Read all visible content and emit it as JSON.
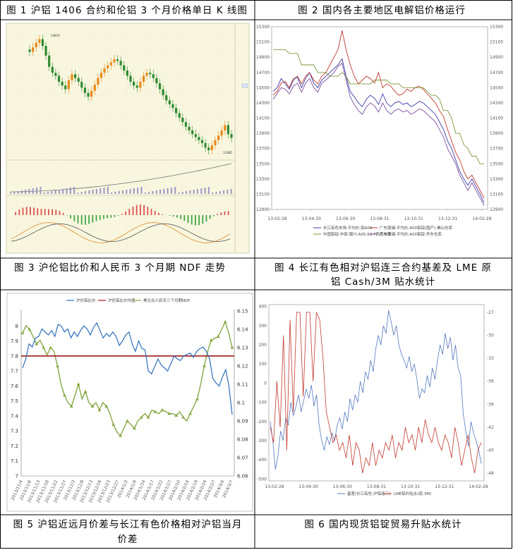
{
  "captions": {
    "fig1": "图 1  沪铝 1406 合约和伦铝 3 个月价格单日 K 线图",
    "fig2": "图  2   国内各主要地区电解铝价格运行",
    "fig3": "图  3    沪伦铝比价和人民币 3 个月期 NDF 走势",
    "fig4_line1": "图 4   长江有色相对沪铝连三合约基差及 LME 原",
    "fig4_line2": "铝 Cash/3M 贴水统计",
    "fig5_line1": "图  5  沪铝近远月价差与长江有色价格相对沪铝当月",
    "fig5_line2": "价差",
    "fig6": "图 6    国内现货铝锭贸易升贴水统计"
  },
  "fig1_labels": {
    "high": "14870",
    "low": "13385"
  },
  "chart_data": [
    {
      "id": "fig1",
      "type": "candlestick",
      "title": "",
      "note": "Daily candlesticks with volume / open-interest and MACD sub-panels; tick text illegible",
      "close_series": [
        14700,
        14760,
        14820,
        14870,
        14780,
        14650,
        14500,
        14420,
        14380,
        14300,
        14250,
        14200,
        14320,
        14400,
        14350,
        14300,
        14220,
        14150,
        14100,
        14180,
        14260,
        14350,
        14420,
        14480,
        14520,
        14560,
        14600,
        14580,
        14520,
        14450,
        14380,
        14300,
        14250,
        14220,
        14300,
        14380,
        14420,
        14400,
        14350,
        14280,
        14200,
        14120,
        14050,
        14000,
        13950,
        13880,
        13820,
        13760,
        13700,
        13650,
        13600,
        13560,
        13520,
        13480,
        13420,
        13385,
        13450,
        13520,
        13580,
        13650,
        13720,
        13600,
        13550
      ]
    },
    {
      "id": "fig2",
      "type": "line",
      "title": "",
      "x_ticks": [
        "13-02-28",
        "13-04-30",
        "13-06-30",
        "13-08-31",
        "13-10-31",
        "13-12-31",
        "14-02-28"
      ],
      "y_left": [
        12900,
        13100,
        13300,
        13500,
        13700,
        13900,
        14100,
        14300,
        14500,
        14700,
        14900,
        15100,
        15300
      ],
      "y_right": [
        12900,
        13100,
        13300,
        13500,
        13700,
        13900,
        14100,
        14300,
        14500,
        14700,
        14900,
        15100,
        15300
      ],
      "ylim": [
        12900,
        15300
      ],
      "legend": [
        "长江有色市场:平均价:铝A00",
        "广东南储:平均价:A00铝锭(国产):佛山仓库",
        "中国铝锭:中部:银川:A00,99.7西南市场",
        "广东南储:平均价:A00铝锭:华东仓库"
      ],
      "series": [
        {
          "name": "长江有色市场:平均价:铝A00",
          "color": "#3a3aa8",
          "values": [
            14450,
            14500,
            14620,
            14550,
            14480,
            14600,
            14640,
            14500,
            14620,
            14700,
            14560,
            14500,
            14600,
            14650,
            14700,
            14750,
            14800,
            14880,
            14650,
            14450,
            14380,
            14300,
            14250,
            14350,
            14400,
            14360,
            14280,
            14420,
            14300,
            14250,
            14300,
            14320,
            14280,
            14300,
            14250,
            14280,
            14320,
            14300,
            14250,
            14200,
            14150,
            14050,
            13950,
            13800,
            13700,
            13550,
            13400,
            13300,
            13220,
            13300,
            13200,
            13100,
            12990
          ]
        },
        {
          "name": "广东南储:平均价:A00铝锭(国产):佛山仓库",
          "color": "#c0392b",
          "values": [
            14400,
            14450,
            14560,
            14580,
            14500,
            14620,
            14650,
            14550,
            14650,
            14700,
            14600,
            14550,
            14650,
            14700,
            14800,
            14900,
            15000,
            15250,
            15000,
            14800,
            14650,
            14550,
            14600,
            14650,
            14620,
            14560,
            14700,
            14500,
            14550,
            14520,
            14450,
            14400,
            14420,
            14480,
            14450,
            14500,
            14520,
            14480,
            14420,
            14360,
            14300,
            14200,
            14120,
            13950,
            13800,
            13650,
            13550,
            13400,
            13300,
            13350,
            13250,
            13150,
            13050
          ]
        },
        {
          "name": "中国铝锭:中部:银川:A00,99.7西南市场",
          "color": "#7a9a3a",
          "values": [
            15000,
            15000,
            15000,
            15000,
            14950,
            14950,
            14950,
            14800,
            14800,
            14800,
            14800,
            14700,
            14700,
            14700,
            14650,
            14650,
            14650,
            14700,
            14650,
            14550,
            14550,
            14550,
            14550,
            14550,
            14550,
            14600,
            14600,
            14600,
            14600,
            14550,
            14550,
            14550,
            14500,
            14500,
            14500,
            14500,
            14500,
            14500,
            14450,
            14400,
            14400,
            14350,
            14200,
            14200,
            14100,
            13900,
            13900,
            13750,
            13700,
            13600,
            13600,
            13500,
            13500
          ]
        },
        {
          "name": "广东南储:平均价:A00铝锭:华东仓库",
          "color": "#7b4fa0",
          "values": [
            14350,
            14420,
            14500,
            14480,
            14420,
            14520,
            14560,
            14440,
            14560,
            14620,
            14500,
            14440,
            14560,
            14600,
            14650,
            14700,
            14780,
            14820,
            14600,
            14380,
            14280,
            14200,
            14150,
            14250,
            14300,
            14260,
            14180,
            14300,
            14200,
            14150,
            14200,
            14220,
            14180,
            14200,
            14150,
            14180,
            14220,
            14200,
            14150,
            14100,
            14050,
            13950,
            13850,
            13700,
            13600,
            13500,
            13350,
            13250,
            13150,
            13250,
            13150,
            13050,
            12950
          ]
        }
      ]
    },
    {
      "id": "fig3",
      "type": "line",
      "title": "",
      "legend": [
        "沪伦铝比价",
        "沪伦铝比价均值",
        "美元兑人民币三个月期NDF"
      ],
      "y_left": [
        "7",
        "7.1",
        "7.2",
        "7.3",
        "7.4",
        "7.5",
        "7.6",
        "7.7",
        "7.8",
        "7.9",
        "8"
      ],
      "y_right": [
        "6.06",
        "6.07",
        "6.08",
        "6.09",
        "6.1",
        "6.11",
        "6.12",
        "6.13",
        "6.14",
        "6.15"
      ],
      "x_ticks": [
        "2013/11/4",
        "2013/11/8",
        "2013/11/13",
        "2013/11/18",
        "2013/11/22",
        "2013/11/27",
        "2013/12/3",
        "2013/12/9",
        "2013/12/13",
        "2013/12/18",
        "2013/12/23",
        "2013/12/27",
        "2014/1/3",
        "2014/1/9",
        "2014/1/14",
        "2014/1/17",
        "2014/1/22",
        "2014/1/27",
        "2014/2/10",
        "2014/2/14",
        "2014/2/19",
        "2014/2/24",
        "2014/2/27",
        "2014/3/4",
        "2014/3/7"
      ],
      "series": [
        {
          "name": "沪伦铝比价",
          "color": "#2e6fba",
          "axis": "left",
          "values": [
            7.72,
            7.78,
            7.88,
            7.86,
            7.92,
            7.93,
            7.98,
            7.96,
            7.94,
            7.97,
            7.93,
            8.01,
            8.0,
            7.96,
            7.98,
            7.92,
            7.96,
            7.93,
            7.97,
            8.0,
            7.98,
            7.94,
            7.99,
            8.02,
            7.97,
            7.92,
            7.95,
            7.93,
            7.96,
            7.93,
            7.87,
            7.9,
            7.94,
            7.96,
            7.88,
            7.83,
            7.9,
            7.85,
            7.84,
            7.7,
            7.68,
            7.73,
            7.78,
            7.74,
            7.72,
            7.7,
            7.75,
            7.8,
            7.78,
            7.77,
            7.8,
            7.81,
            7.82,
            7.79,
            7.83,
            7.85,
            7.86,
            7.83,
            7.78,
            7.65,
            7.62,
            7.6,
            7.66,
            7.71,
            7.6,
            7.41
          ]
        },
        {
          "name": "沪伦铝比价均值",
          "color": "#a01818",
          "axis": "left",
          "values": [
            7.8,
            7.8
          ]
        },
        {
          "name": "美元兑人民币三个月期NDF",
          "color": "#86a844",
          "axis": "right",
          "values": [
            6.138,
            6.142,
            6.14,
            6.136,
            6.132,
            6.134,
            6.13,
            6.126,
            6.13,
            6.128,
            6.12,
            6.11,
            6.104,
            6.1,
            6.098,
            6.104,
            6.11,
            6.102,
            6.106,
            6.1,
            6.098,
            6.1,
            6.096,
            6.1,
            6.098,
            6.094,
            6.088,
            6.084,
            6.082,
            6.086,
            6.09,
            6.088,
            6.086,
            6.09,
            6.092,
            6.094,
            6.092,
            6.096,
            6.095,
            6.094,
            6.096,
            6.095,
            6.094,
            6.094,
            6.093,
            6.095,
            6.092,
            6.09,
            6.094,
            6.098,
            6.102,
            6.11,
            6.12,
            6.128,
            6.134,
            6.135,
            6.136,
            6.14,
            6.144,
            6.138,
            6.13
          ]
        }
      ]
    },
    {
      "id": "fig4",
      "type": "line",
      "title": "",
      "y_left": [
        -500,
        -400,
        -300,
        -200,
        -100,
        0,
        100,
        200,
        300,
        400
      ],
      "y_right": [
        -48,
        -45,
        -42,
        -39,
        -36,
        -33,
        -30,
        -27
      ],
      "x_ticks": [
        "13-02-28",
        "13-04-30",
        "13-06-30",
        "13-08-31",
        "13-10-31",
        "13-12-31",
        "14-02-28"
      ],
      "legend": [
        "基差(长江有色-沪铝连三)",
        "LME铝升贴水(现-3M)"
      ],
      "series": [
        {
          "name": "基差(长江有色-沪铝连三)",
          "color": "#5577c0",
          "axis": "left",
          "values": [
            -200,
            -300,
            -450,
            -380,
            -250,
            -300,
            -180,
            -220,
            -100,
            -170,
            -120,
            -60,
            -150,
            -90,
            -30,
            -80,
            -10,
            -120,
            -60,
            -220,
            -300,
            -350,
            -280,
            -320,
            -260,
            -300,
            -220,
            -180,
            -240,
            -150,
            -200,
            -80,
            -140,
            -60,
            -100,
            10,
            -50,
            60,
            20,
            120,
            60,
            180,
            250,
            200,
            300,
            260,
            380,
            320,
            250,
            300,
            200,
            150,
            120,
            80,
            140,
            60,
            100,
            20,
            -80,
            -30,
            -50,
            40,
            -20,
            80,
            20,
            120,
            200,
            150,
            260,
            180,
            240,
            120,
            200,
            80,
            40,
            -160,
            -250,
            -330,
            -200,
            -260,
            -300,
            -350,
            -420
          ]
        },
        {
          "name": "LME铝升贴水(现-3M)",
          "color": "#c0392b",
          "axis": "right",
          "values": [
            -42,
            -44,
            -36,
            -42,
            -30,
            -45,
            -28,
            -40,
            -27,
            -27,
            -38,
            -27,
            -27,
            -36,
            -27,
            -28,
            -33,
            -40,
            -42,
            -44,
            -43,
            -45,
            -44,
            -46,
            -43,
            -47,
            -44,
            -45,
            -48,
            -46,
            -47,
            -44,
            -47,
            -45,
            -46,
            -44,
            -45,
            -43,
            -46,
            -44,
            -45,
            -42,
            -44,
            -43,
            -45,
            -42,
            -44,
            -41,
            -43,
            -44,
            -42,
            -44,
            -45,
            -43,
            -44,
            -46,
            -42,
            -44,
            -47,
            -45,
            -43,
            -46,
            -48,
            -45,
            -44
          ]
        }
      ]
    }
  ]
}
